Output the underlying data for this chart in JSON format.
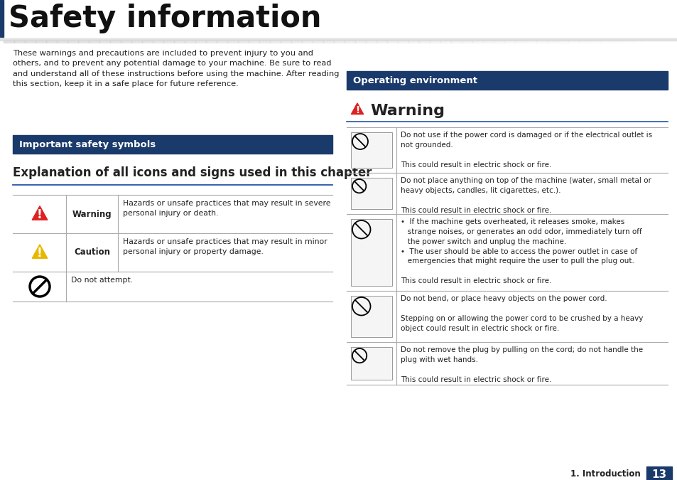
{
  "title": "Safety information",
  "title_color": "#1a1a1a",
  "page_bg": "#ffffff",
  "dark_navy": "#1a3a6b",
  "text_color": "#222222",
  "table_line_color": "#aaaaaa",
  "intro_text": "These warnings and precautions are included to prevent injury to you and\nothers, and to prevent any potential damage to your machine. Be sure to read\nand understand all of these instructions before using the machine. After reading\nthis section, keep it in a safe place for future reference.",
  "section1_header": "Important safety symbols",
  "section1_header_text_color": "#ffffff",
  "explanation_title": "Explanation of all icons and signs used in this chapter",
  "table_rows": [
    {
      "icon": "warning_red",
      "label": "Warning",
      "desc": "Hazards or unsafe practices that may result in severe\npersonal injury or death."
    },
    {
      "icon": "caution_yellow",
      "label": "Caution",
      "desc": "Hazards or unsafe practices that may result in minor\npersonal injury or property damage."
    },
    {
      "icon": "no_symbol",
      "label": "",
      "desc": "Do not attempt."
    }
  ],
  "section2_header": "Operating environment",
  "section2_header_text_color": "#ffffff",
  "warning_title": "Warning",
  "warning_rows": [
    {
      "desc1": "Do not use if the power cord is damaged or if the electrical outlet is\nnot grounded.",
      "desc2": "This could result in electric shock or fire."
    },
    {
      "desc1": "Do not place anything on top of the machine (water, small metal or\nheavy objects, candles, lit cigarettes, etc.).",
      "desc2": "This could result in electric shock or fire."
    },
    {
      "desc1": "•  If the machine gets overheated, it releases smoke, makes\n   strange noises, or generates an odd odor, immediately turn off\n   the power switch and unplug the machine.\n•  The user should be able to access the power outlet in case of\n   emergencies that might require the user to pull the plug out.",
      "desc2": "This could result in electric shock or fire."
    },
    {
      "desc1": "Do not bend, or place heavy objects on the power cord.\n\nStepping on or allowing the power cord to be crushed by a heavy\nobject could result in electric shock or fire.",
      "desc2": ""
    },
    {
      "desc1": "Do not remove the plug by pulling on the cord; do not handle the\nplug with wet hands.",
      "desc2": "This could result in electric shock or fire."
    }
  ],
  "footer_text": "1. Introduction",
  "page_number": "13"
}
